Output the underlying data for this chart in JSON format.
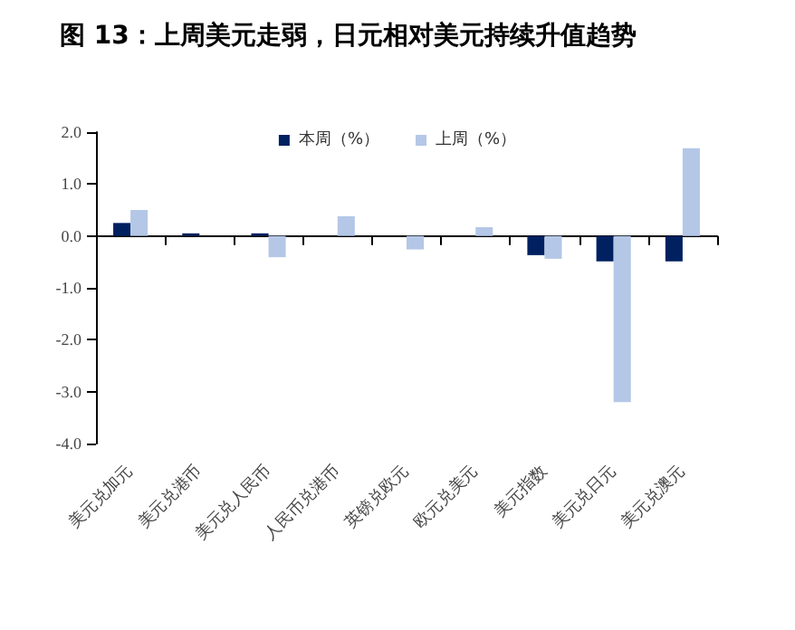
{
  "chart_data": {
    "type": "bar",
    "title": "图 13：上周美元走弱，日元相对美元持续升值趋势",
    "categories": [
      "美元兑加元",
      "美元兑港币",
      "美元兑人民币",
      "人民币兑港币",
      "英镑兑欧元",
      "欧元兑美元",
      "美元指数",
      "美元兑日元",
      "美元兑澳元"
    ],
    "series": [
      {
        "name": "本周（%）",
        "color": "#002060",
        "values": [
          0.25,
          0.05,
          0.05,
          0,
          0,
          0,
          -0.37,
          -0.49,
          -0.49
        ]
      },
      {
        "name": "上周（%）",
        "color": "#b4c7e7",
        "values": [
          0.5,
          0,
          -0.41,
          0.38,
          -0.26,
          0.17,
          -0.44,
          -3.2,
          1.69
        ]
      }
    ],
    "ylim": [
      -4,
      2
    ],
    "yticks": [
      {
        "value": -4,
        "label": "-4.0"
      },
      {
        "value": -3,
        "label": "-3.0"
      },
      {
        "value": -2,
        "label": "-2.0"
      },
      {
        "value": -1,
        "label": "-1.0"
      },
      {
        "value": 0,
        "label": "0.0"
      },
      {
        "value": 1,
        "label": "1.0"
      },
      {
        "value": 2,
        "label": "2.0"
      }
    ],
    "legend": "top"
  }
}
